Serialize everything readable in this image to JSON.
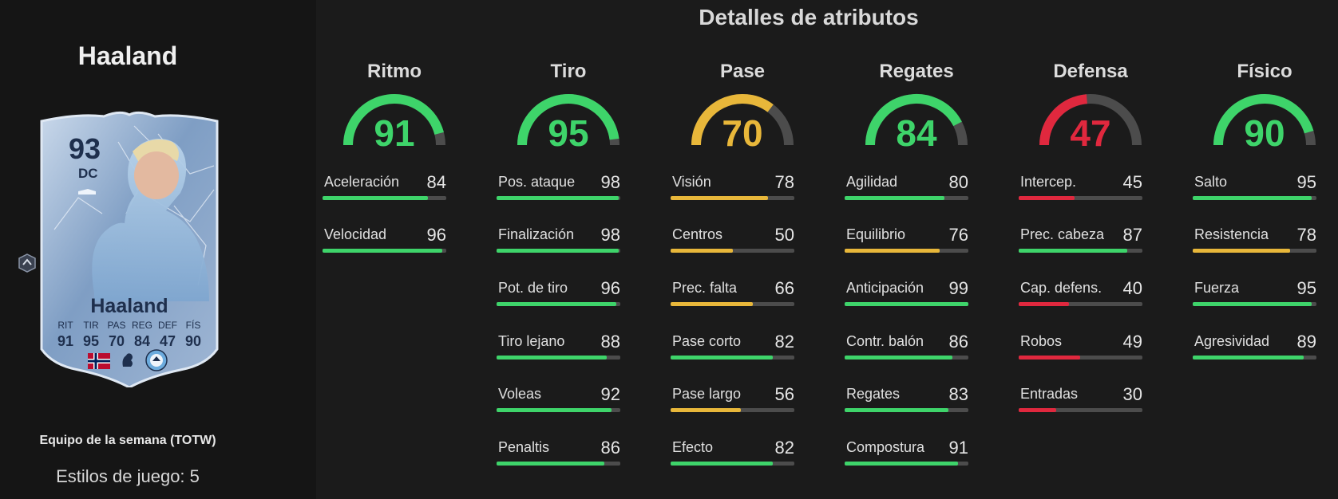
{
  "player": {
    "name": "Haaland",
    "promo": "Equipo de la semana (TOTW)",
    "playstyles": "Estilos de juego: 5",
    "card": {
      "rating": "93",
      "position": "DC",
      "name": "Haaland",
      "stat_labels": [
        "RIT",
        "TIR",
        "PAS",
        "REG",
        "DEF",
        "FÍS"
      ],
      "stat_values": [
        "91",
        "95",
        "70",
        "84",
        "47",
        "90"
      ],
      "nation_icon": "norway-flag-icon",
      "league_icon": "premier-league-icon",
      "club_icon": "manchester-city-icon"
    }
  },
  "main": {
    "title": "Detalles de atributos"
  },
  "colors": {
    "green": "#3ed46a",
    "yellow": "#e8b73a",
    "red": "#e0283e",
    "track": "#4c4c4c"
  },
  "categories": [
    {
      "title": "Ritmo",
      "value": 91,
      "attributes": [
        {
          "label": "Aceleración",
          "value": 84
        },
        {
          "label": "Velocidad",
          "value": 96
        }
      ]
    },
    {
      "title": "Tiro",
      "value": 95,
      "attributes": [
        {
          "label": "Pos. ataque",
          "value": 98
        },
        {
          "label": "Finalización",
          "value": 98
        },
        {
          "label": "Pot. de tiro",
          "value": 96
        },
        {
          "label": "Tiro lejano",
          "value": 88
        },
        {
          "label": "Voleas",
          "value": 92
        },
        {
          "label": "Penaltis",
          "value": 86
        }
      ]
    },
    {
      "title": "Pase",
      "value": 70,
      "attributes": [
        {
          "label": "Visión",
          "value": 78
        },
        {
          "label": "Centros",
          "value": 50
        },
        {
          "label": "Prec. falta",
          "value": 66
        },
        {
          "label": "Pase corto",
          "value": 82
        },
        {
          "label": "Pase largo",
          "value": 56
        },
        {
          "label": "Efecto",
          "value": 82
        }
      ]
    },
    {
      "title": "Regates",
      "value": 84,
      "attributes": [
        {
          "label": "Agilidad",
          "value": 80
        },
        {
          "label": "Equilibrio",
          "value": 76
        },
        {
          "label": "Anticipación",
          "value": 99
        },
        {
          "label": "Contr. balón",
          "value": 86
        },
        {
          "label": "Regates",
          "value": 83
        },
        {
          "label": "Compostura",
          "value": 91
        }
      ]
    },
    {
      "title": "Defensa",
      "value": 47,
      "attributes": [
        {
          "label": "Intercep.",
          "value": 45
        },
        {
          "label": "Prec. cabeza",
          "value": 87
        },
        {
          "label": "Cap. defens.",
          "value": 40
        },
        {
          "label": "Robos",
          "value": 49
        },
        {
          "label": "Entradas",
          "value": 30
        }
      ]
    },
    {
      "title": "Físico",
      "value": 90,
      "attributes": [
        {
          "label": "Salto",
          "value": 95
        },
        {
          "label": "Resistencia",
          "value": 78
        },
        {
          "label": "Fuerza",
          "value": 95
        },
        {
          "label": "Agresividad",
          "value": 89
        }
      ]
    }
  ]
}
